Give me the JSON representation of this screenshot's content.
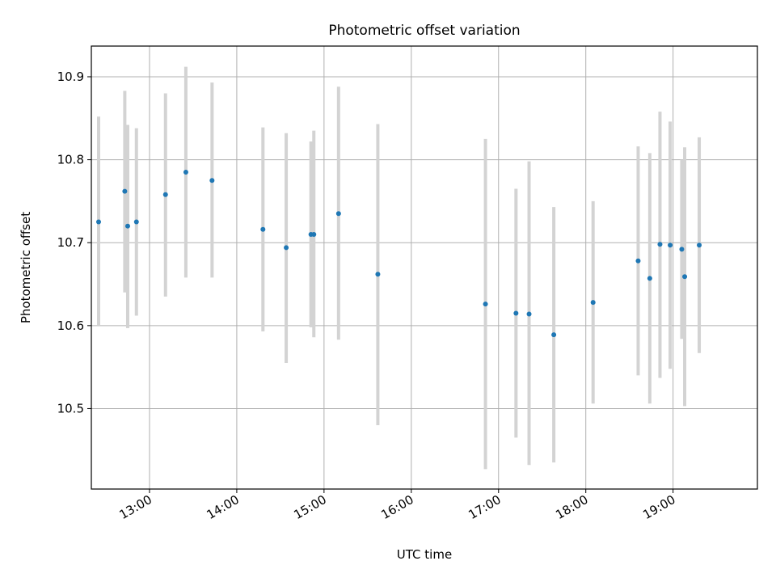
{
  "chart_data": {
    "type": "scatter",
    "title": "Photometric offset variation",
    "xlabel": "UTC time",
    "ylabel": "Photometric offset",
    "grid": true,
    "x_ticks": [
      "13:00",
      "14:00",
      "15:00",
      "16:00",
      "17:00",
      "18:00",
      "19:00"
    ],
    "y_ticks": [
      "10.5",
      "10.6",
      "10.7",
      "10.8",
      "10.9"
    ],
    "xlim": [
      "12:20",
      "19:58"
    ],
    "ylim": [
      10.403,
      10.937
    ],
    "colors": {
      "points": "#1f77b4",
      "errorbars": "#d3d3d3",
      "grid": "#b0b0b0"
    },
    "points": [
      {
        "x": "12:25",
        "y": 10.725,
        "ylow": 10.6,
        "yhigh": 10.852
      },
      {
        "x": "12:43",
        "y": 10.762,
        "ylow": 10.64,
        "yhigh": 10.883
      },
      {
        "x": "12:45",
        "y": 10.72,
        "ylow": 10.597,
        "yhigh": 10.842
      },
      {
        "x": "12:51",
        "y": 10.725,
        "ylow": 10.612,
        "yhigh": 10.838
      },
      {
        "x": "13:11",
        "y": 10.758,
        "ylow": 10.635,
        "yhigh": 10.88
      },
      {
        "x": "13:25",
        "y": 10.785,
        "ylow": 10.658,
        "yhigh": 10.912
      },
      {
        "x": "13:43",
        "y": 10.775,
        "ylow": 10.658,
        "yhigh": 10.893
      },
      {
        "x": "14:18",
        "y": 10.716,
        "ylow": 10.593,
        "yhigh": 10.839
      },
      {
        "x": "14:34",
        "y": 10.694,
        "ylow": 10.555,
        "yhigh": 10.832
      },
      {
        "x": "14:51",
        "y": 10.71,
        "ylow": 10.598,
        "yhigh": 10.822
      },
      {
        "x": "14:53",
        "y": 10.71,
        "ylow": 10.586,
        "yhigh": 10.835
      },
      {
        "x": "15:10",
        "y": 10.735,
        "ylow": 10.583,
        "yhigh": 10.888
      },
      {
        "x": "15:37",
        "y": 10.662,
        "ylow": 10.48,
        "yhigh": 10.843
      },
      {
        "x": "16:51",
        "y": 10.626,
        "ylow": 10.427,
        "yhigh": 10.825
      },
      {
        "x": "17:12",
        "y": 10.615,
        "ylow": 10.465,
        "yhigh": 10.765
      },
      {
        "x": "17:21",
        "y": 10.614,
        "ylow": 10.432,
        "yhigh": 10.798
      },
      {
        "x": "17:38",
        "y": 10.589,
        "ylow": 10.435,
        "yhigh": 10.743
      },
      {
        "x": "18:05",
        "y": 10.628,
        "ylow": 10.506,
        "yhigh": 10.75
      },
      {
        "x": "18:36",
        "y": 10.678,
        "ylow": 10.54,
        "yhigh": 10.816
      },
      {
        "x": "18:44",
        "y": 10.657,
        "ylow": 10.506,
        "yhigh": 10.808
      },
      {
        "x": "18:51",
        "y": 10.698,
        "ylow": 10.537,
        "yhigh": 10.858
      },
      {
        "x": "18:58",
        "y": 10.697,
        "ylow": 10.548,
        "yhigh": 10.846
      },
      {
        "x": "19:06",
        "y": 10.692,
        "ylow": 10.584,
        "yhigh": 10.8
      },
      {
        "x": "19:08",
        "y": 10.659,
        "ylow": 10.503,
        "yhigh": 10.815
      },
      {
        "x": "19:18",
        "y": 10.697,
        "ylow": 10.567,
        "yhigh": 10.827
      }
    ]
  }
}
